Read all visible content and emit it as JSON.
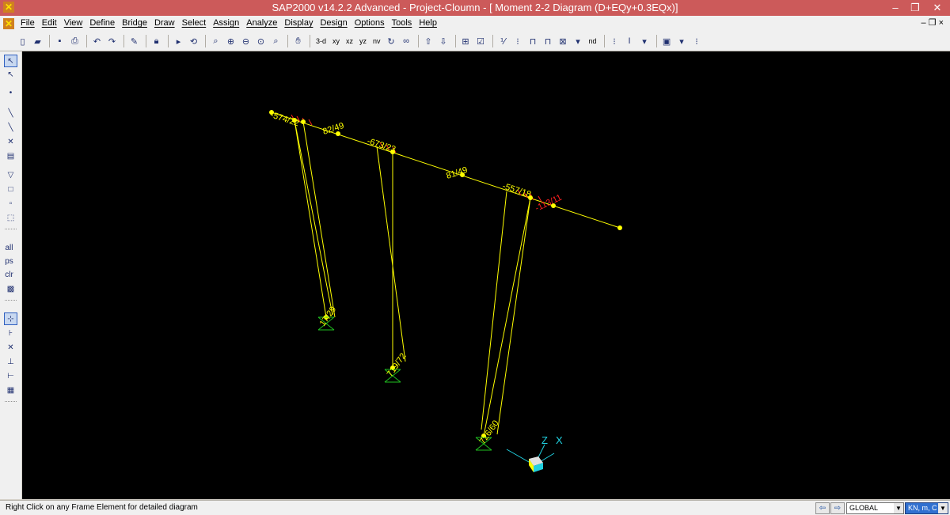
{
  "window": {
    "title": "SAP2000 v14.2.2 Advanced  - Project-Cloumn - [  Moment 2-2 Diagram   (D+EQy+0.3EQx)]",
    "minimize": "–",
    "restore": "❐",
    "close": "✕"
  },
  "menu": [
    "File",
    "Edit",
    "View",
    "Define",
    "Bridge",
    "Draw",
    "Select",
    "Assign",
    "Analyze",
    "Display",
    "Design",
    "Options",
    "Tools",
    "Help"
  ],
  "mdi_controls": "– ❐ ×",
  "toolbar": {
    "view_3d": "3-d",
    "view_xy": "xy",
    "view_xz": "xz",
    "view_yz": "yz",
    "view_nv": "nv",
    "view_nd": "nd"
  },
  "left_toolbar": {
    "all": "all",
    "ps": "ps",
    "clr": "clr"
  },
  "diagram": {
    "labels": {
      "top_left": "-574/22",
      "beam_mid_1": "82/49",
      "center_top": "-673/23",
      "beam_mid_2": "81/49",
      "right_top": "-557/18",
      "right_red": "-113/11",
      "base_1": "17/29",
      "base_2": "719/72",
      "base_3": "726/60"
    },
    "axes": {
      "z": "Z",
      "x": "X"
    }
  },
  "colors": {
    "structure": "#ffff00",
    "joint": "#ffff00",
    "negative_label": "#ff2020",
    "support": "#20c020",
    "axis": "#20d0e0"
  },
  "status": {
    "message": "Right Click on any Frame Element for detailed diagram",
    "coord_system": "GLOBAL",
    "units": "KN, m, C"
  }
}
